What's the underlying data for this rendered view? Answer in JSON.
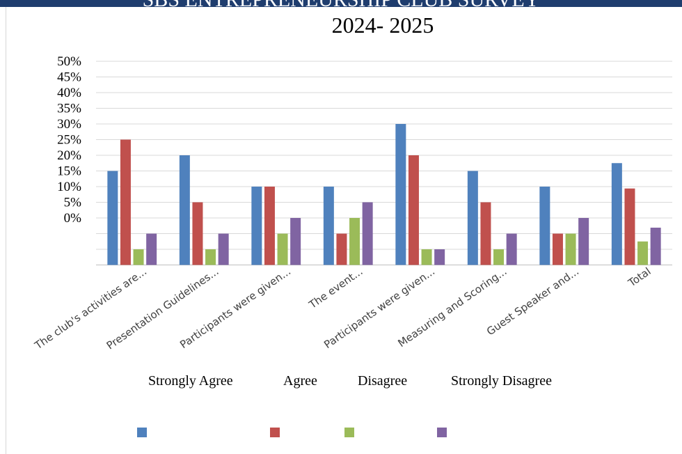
{
  "chart_data": {
    "type": "bar",
    "title": "SBS ENTREPRENEURSHIP CLUB SURVEY",
    "subtitle": "2024- 2025",
    "categories": [
      "The club's activities are...",
      "Presentation Guidelines...",
      "Participants were given...",
      "The event...",
      "Participants were given...",
      "Measuring and Scoring...",
      "Guest Speaker and...",
      "Total"
    ],
    "series": [
      {
        "name": "Strongly Agree",
        "color": "#4f81bd",
        "values": [
          15,
          20,
          10,
          10,
          30,
          15,
          10,
          17.5
        ]
      },
      {
        "name": "Agree",
        "color": "#c0504d",
        "values": [
          25,
          5,
          10,
          -5,
          20,
          5,
          -5,
          9.4
        ]
      },
      {
        "name": "Disagree",
        "color": "#9bbb59",
        "values": [
          -10,
          -10,
          -5,
          0,
          -10,
          -10,
          -5,
          -7.5
        ]
      },
      {
        "name": "Strongly Disagree",
        "color": "#8064a2",
        "values": [
          -5,
          -5,
          0,
          5,
          -10,
          -5,
          0,
          -3.1
        ]
      }
    ],
    "y_tick_labels": [
      "50%",
      "45%",
      "40%",
      "35%",
      "30%",
      "25%",
      "20%",
      "15%",
      "10%",
      "5%",
      "0%"
    ],
    "ylim": [
      -15,
      50
    ],
    "grid": true,
    "legend_position": "bottom"
  }
}
